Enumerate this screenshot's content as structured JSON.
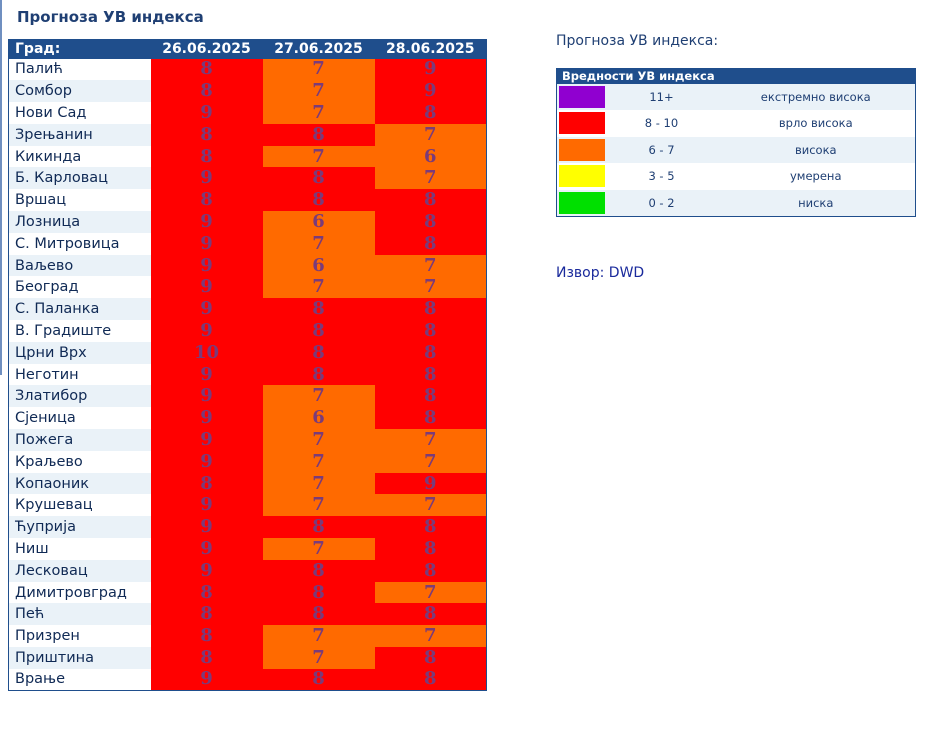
{
  "page_title": "Прогноза УВ индекса",
  "colors": {
    "extreme": "#9000d0",
    "very_high": "#ff0000",
    "high": "#ff6a00",
    "moderate": "#ffff00",
    "low": "#00e000",
    "header_bg": "#1f4e8c"
  },
  "table": {
    "city_header": "Град:",
    "dates": [
      "26.06.2025",
      "27.06.2025",
      "28.06.2025"
    ],
    "rows": [
      {
        "city": "Палић",
        "values": [
          8,
          7,
          9
        ]
      },
      {
        "city": "Сомбор",
        "values": [
          8,
          7,
          9
        ]
      },
      {
        "city": "Нови Сад",
        "values": [
          9,
          7,
          8
        ]
      },
      {
        "city": "Зрењанин",
        "values": [
          8,
          8,
          7
        ]
      },
      {
        "city": "Кикинда",
        "values": [
          8,
          7,
          6
        ]
      },
      {
        "city": "Б. Карловац",
        "values": [
          9,
          8,
          7
        ]
      },
      {
        "city": "Вршац",
        "values": [
          8,
          8,
          8
        ]
      },
      {
        "city": "Лозница",
        "values": [
          9,
          6,
          8
        ]
      },
      {
        "city": "С. Митровица",
        "values": [
          9,
          7,
          8
        ]
      },
      {
        "city": "Ваљево",
        "values": [
          9,
          6,
          7
        ]
      },
      {
        "city": "Београд",
        "values": [
          9,
          7,
          7
        ]
      },
      {
        "city": "С. Паланка",
        "values": [
          9,
          8,
          8
        ]
      },
      {
        "city": "В. Градиште",
        "values": [
          9,
          8,
          8
        ]
      },
      {
        "city": "Црни Врх",
        "values": [
          10,
          8,
          8
        ]
      },
      {
        "city": "Неготин",
        "values": [
          9,
          8,
          8
        ]
      },
      {
        "city": "Златибор",
        "values": [
          9,
          7,
          8
        ]
      },
      {
        "city": "Сјеница",
        "values": [
          9,
          6,
          8
        ]
      },
      {
        "city": "Пожега",
        "values": [
          9,
          7,
          7
        ]
      },
      {
        "city": "Краљево",
        "values": [
          9,
          7,
          7
        ]
      },
      {
        "city": "Копаоник",
        "values": [
          8,
          7,
          9
        ]
      },
      {
        "city": "Крушевац",
        "values": [
          9,
          7,
          7
        ]
      },
      {
        "city": "Ћуприја",
        "values": [
          9,
          8,
          8
        ]
      },
      {
        "city": "Ниш",
        "values": [
          9,
          7,
          8
        ]
      },
      {
        "city": "Лесковац",
        "values": [
          9,
          8,
          8
        ]
      },
      {
        "city": "Димитровград",
        "values": [
          8,
          8,
          7
        ]
      },
      {
        "city": "Пећ",
        "values": [
          8,
          8,
          8
        ]
      },
      {
        "city": "Призрен",
        "values": [
          8,
          7,
          7
        ]
      },
      {
        "city": "Приштина",
        "values": [
          8,
          7,
          8
        ]
      },
      {
        "city": "Врање",
        "values": [
          9,
          8,
          8
        ]
      }
    ]
  },
  "legend": {
    "caption": "Прогноза УВ индекса:",
    "header": "Вредности УВ индекса",
    "items": [
      {
        "range": "11+",
        "label": "екстремно висока",
        "color": "#9000d0"
      },
      {
        "range": "8 - 10",
        "label": "врло висока",
        "color": "#ff0000"
      },
      {
        "range": "6 - 7",
        "label": "висока",
        "color": "#ff6a00"
      },
      {
        "range": "3 - 5",
        "label": "умерена",
        "color": "#ffff00"
      },
      {
        "range": "0 - 2",
        "label": "ниска",
        "color": "#00e000"
      }
    ]
  },
  "source": "Извор: DWD"
}
